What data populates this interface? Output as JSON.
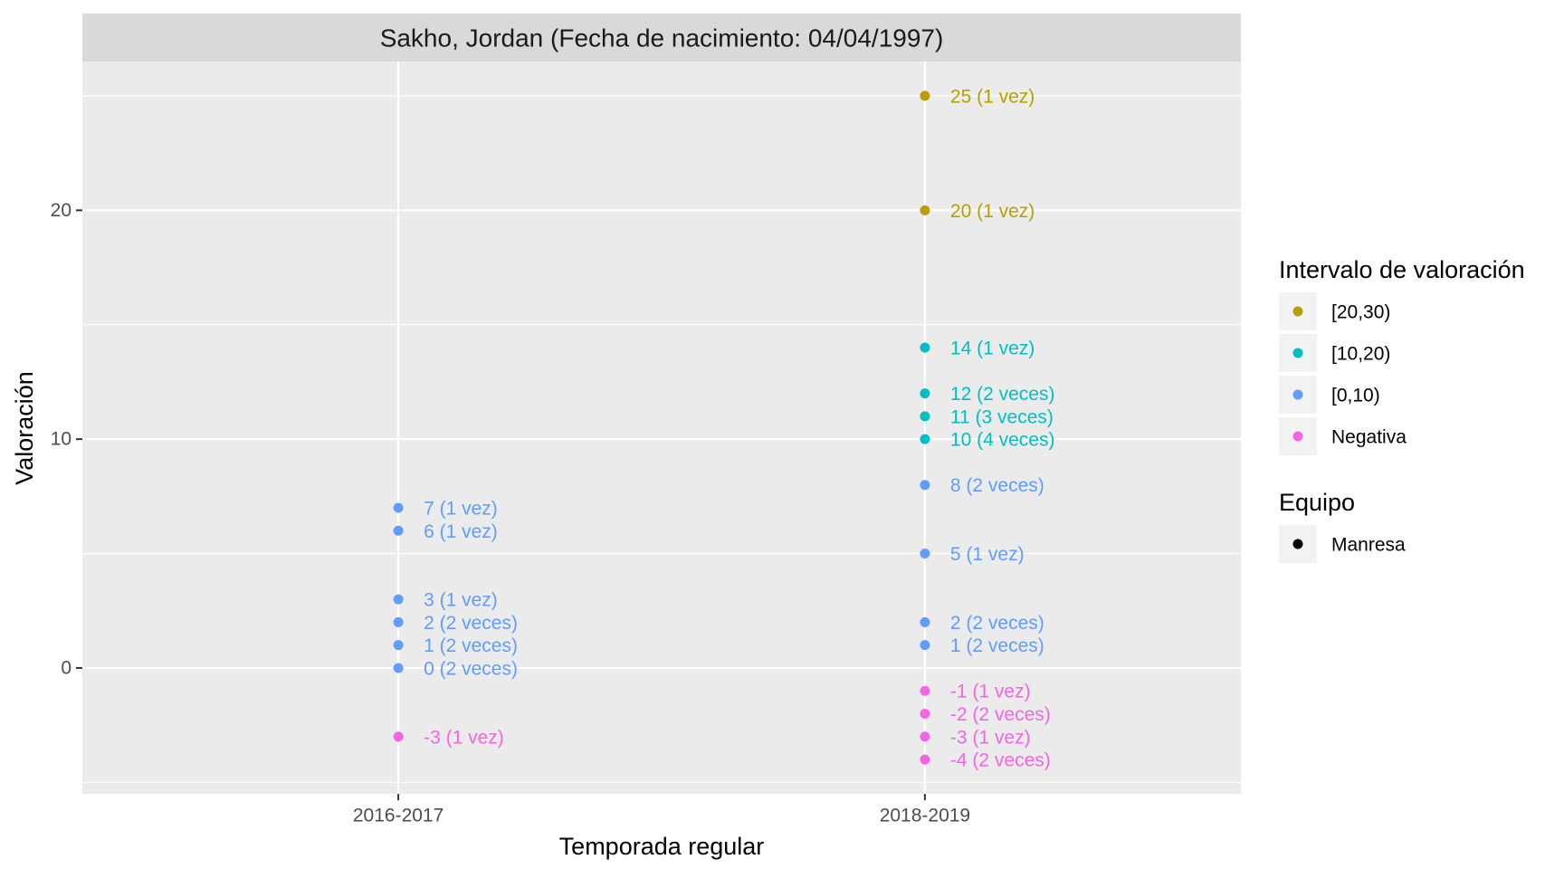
{
  "chart_data": {
    "type": "scatter",
    "title": "Sakho, Jordan (Fecha de nacimiento: 04/04/1997)",
    "xlabel": "Temporada regular",
    "ylabel": "Valoración",
    "categories": [
      "2016-2017",
      "2018-2019"
    ],
    "ylim": [
      -5.5,
      26.5
    ],
    "yticks": [
      0,
      10,
      20
    ],
    "grid": true,
    "legend_position": "right",
    "colors": {
      "[20,30)": "#B79F00",
      "[10,20)": "#00BFC4",
      "[0,10)": "#619CFF",
      "Negativa": "#F564E3"
    },
    "points": [
      {
        "x": "2016-2017",
        "y": 7,
        "label": "7 (1 vez)",
        "group": "[0,10)"
      },
      {
        "x": "2016-2017",
        "y": 6,
        "label": "6 (1 vez)",
        "group": "[0,10)"
      },
      {
        "x": "2016-2017",
        "y": 3,
        "label": "3 (1 vez)",
        "group": "[0,10)"
      },
      {
        "x": "2016-2017",
        "y": 2,
        "label": "2 (2 veces)",
        "group": "[0,10)"
      },
      {
        "x": "2016-2017",
        "y": 1,
        "label": "1 (2 veces)",
        "group": "[0,10)"
      },
      {
        "x": "2016-2017",
        "y": 0,
        "label": "0 (2 veces)",
        "group": "[0,10)"
      },
      {
        "x": "2016-2017",
        "y": -3,
        "label": "-3 (1 vez)",
        "group": "Negativa"
      },
      {
        "x": "2018-2019",
        "y": 25,
        "label": "25 (1 vez)",
        "group": "[20,30)"
      },
      {
        "x": "2018-2019",
        "y": 20,
        "label": "20 (1 vez)",
        "group": "[20,30)"
      },
      {
        "x": "2018-2019",
        "y": 14,
        "label": "14 (1 vez)",
        "group": "[10,20)"
      },
      {
        "x": "2018-2019",
        "y": 12,
        "label": "12 (2 veces)",
        "group": "[10,20)"
      },
      {
        "x": "2018-2019",
        "y": 11,
        "label": "11 (3 veces)",
        "group": "[10,20)"
      },
      {
        "x": "2018-2019",
        "y": 10,
        "label": "10 (4 veces)",
        "group": "[10,20)"
      },
      {
        "x": "2018-2019",
        "y": 8,
        "label": "8 (2 veces)",
        "group": "[0,10)"
      },
      {
        "x": "2018-2019",
        "y": 5,
        "label": "5 (1 vez)",
        "group": "[0,10)"
      },
      {
        "x": "2018-2019",
        "y": 2,
        "label": "2 (2 veces)",
        "group": "[0,10)"
      },
      {
        "x": "2018-2019",
        "y": 1,
        "label": "1 (2 veces)",
        "group": "[0,10)"
      },
      {
        "x": "2018-2019",
        "y": -1,
        "label": "-1 (1 vez)",
        "group": "Negativa"
      },
      {
        "x": "2018-2019",
        "y": -2,
        "label": "-2 (2 veces)",
        "group": "Negativa"
      },
      {
        "x": "2018-2019",
        "y": -3,
        "label": "-3 (1 vez)",
        "group": "Negativa"
      },
      {
        "x": "2018-2019",
        "y": -4,
        "label": "-4 (2 veces)",
        "group": "Negativa"
      }
    ],
    "legends": [
      {
        "title": "Intervalo de valoración",
        "items": [
          {
            "label": "[20,30)",
            "color": "#B79F00"
          },
          {
            "label": "[10,20)",
            "color": "#00BFC4"
          },
          {
            "label": "[0,10)",
            "color": "#619CFF"
          },
          {
            "label": "Negativa",
            "color": "#F564E3"
          }
        ]
      },
      {
        "title": "Equipo",
        "items": [
          {
            "label": "Manresa",
            "color": "#000000"
          }
        ]
      }
    ]
  }
}
